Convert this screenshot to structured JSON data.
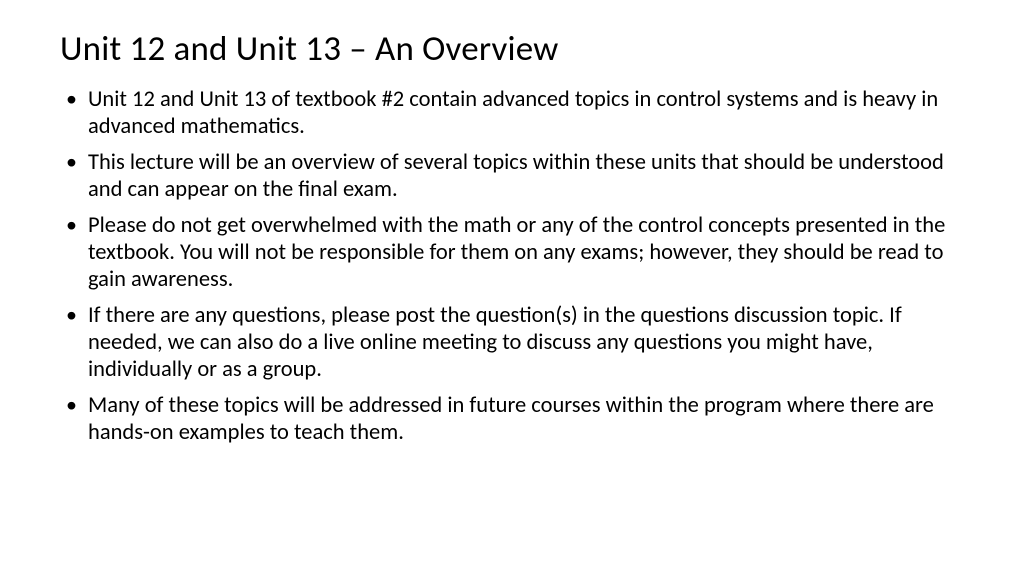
{
  "slide": {
    "title": "Unit 12 and Unit 13 – An Overview",
    "bullets": [
      "Unit 12 and Unit 13 of textbook #2 contain advanced topics in control systems and is heavy in advanced mathematics.",
      " This lecture will be an overview of several topics within these units that should be understood and can appear on the final exam.",
      "Please do not get overwhelmed with the math or any of the control concepts presented in the textbook. You will not be responsible for them on any exams; however, they should be read to gain awareness.",
      "If there are any questions, please post the question(s) in the questions discussion topic. If needed, we can also do a live online meeting to discuss any questions you might have, individually or as a group.",
      "Many of these topics will be addressed in future courses within the program where there are hands-on examples to teach them."
    ]
  },
  "style": {
    "background_color": "#ffffff",
    "text_color": "#000000",
    "title_fontsize": 35,
    "body_fontsize": 22.5,
    "font_family": "Calibri"
  }
}
